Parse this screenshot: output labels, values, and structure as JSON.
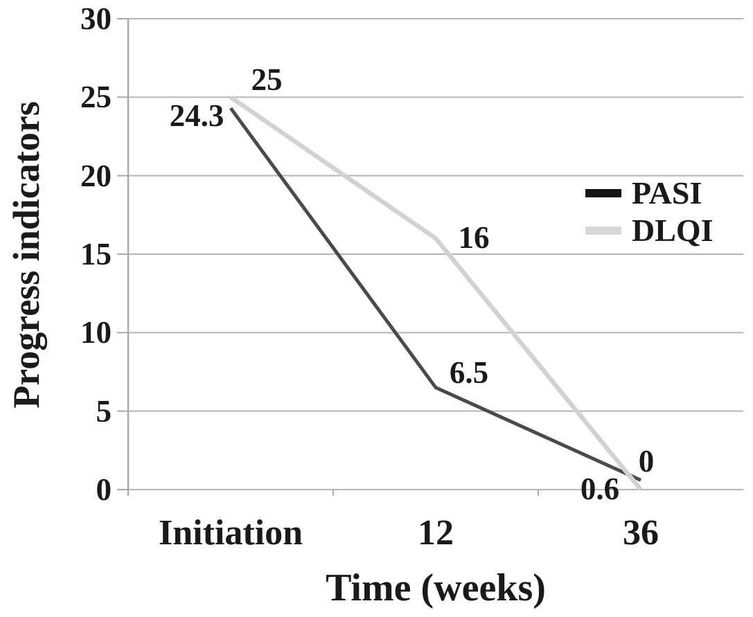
{
  "chart_data": {
    "type": "line",
    "title": "",
    "xlabel": "Time (weeks)",
    "ylabel": "Progress indicators",
    "categories": [
      "Initiation",
      "12",
      "36"
    ],
    "ylim": [
      0,
      30
    ],
    "ytick_step": 5,
    "ytick_labels": [
      "0",
      "5",
      "10",
      "15",
      "20",
      "25",
      "30"
    ],
    "grid": "horizontal",
    "legend_position": "middle-right",
    "series": [
      {
        "name": "PASI",
        "values": [
          24.3,
          6.5,
          0.6
        ],
        "point_labels": [
          "24.3",
          "6.5",
          "0.6"
        ],
        "label_offsets": [
          [
            -49,
            11
          ],
          [
            48,
            -22
          ],
          [
            -59,
            13
          ]
        ],
        "line_color": "#4a4a4a",
        "legend_color": "#141414",
        "line_width": 5
      },
      {
        "name": "DLQI",
        "values": [
          25,
          16,
          0
        ],
        "point_labels": [
          "25",
          "16",
          "0"
        ],
        "label_offsets": [
          [
            52,
            -25
          ],
          [
            55,
            -1
          ],
          [
            8,
            -41
          ]
        ],
        "line_color": "#d2d2d2",
        "legend_color": "#d9d9d9",
        "line_width": 6.5
      }
    ],
    "colors": {
      "grid": "#b5b5b5",
      "axis": "#a9a9a9",
      "text": "#1a1a1a",
      "background": "#ffffff"
    }
  }
}
